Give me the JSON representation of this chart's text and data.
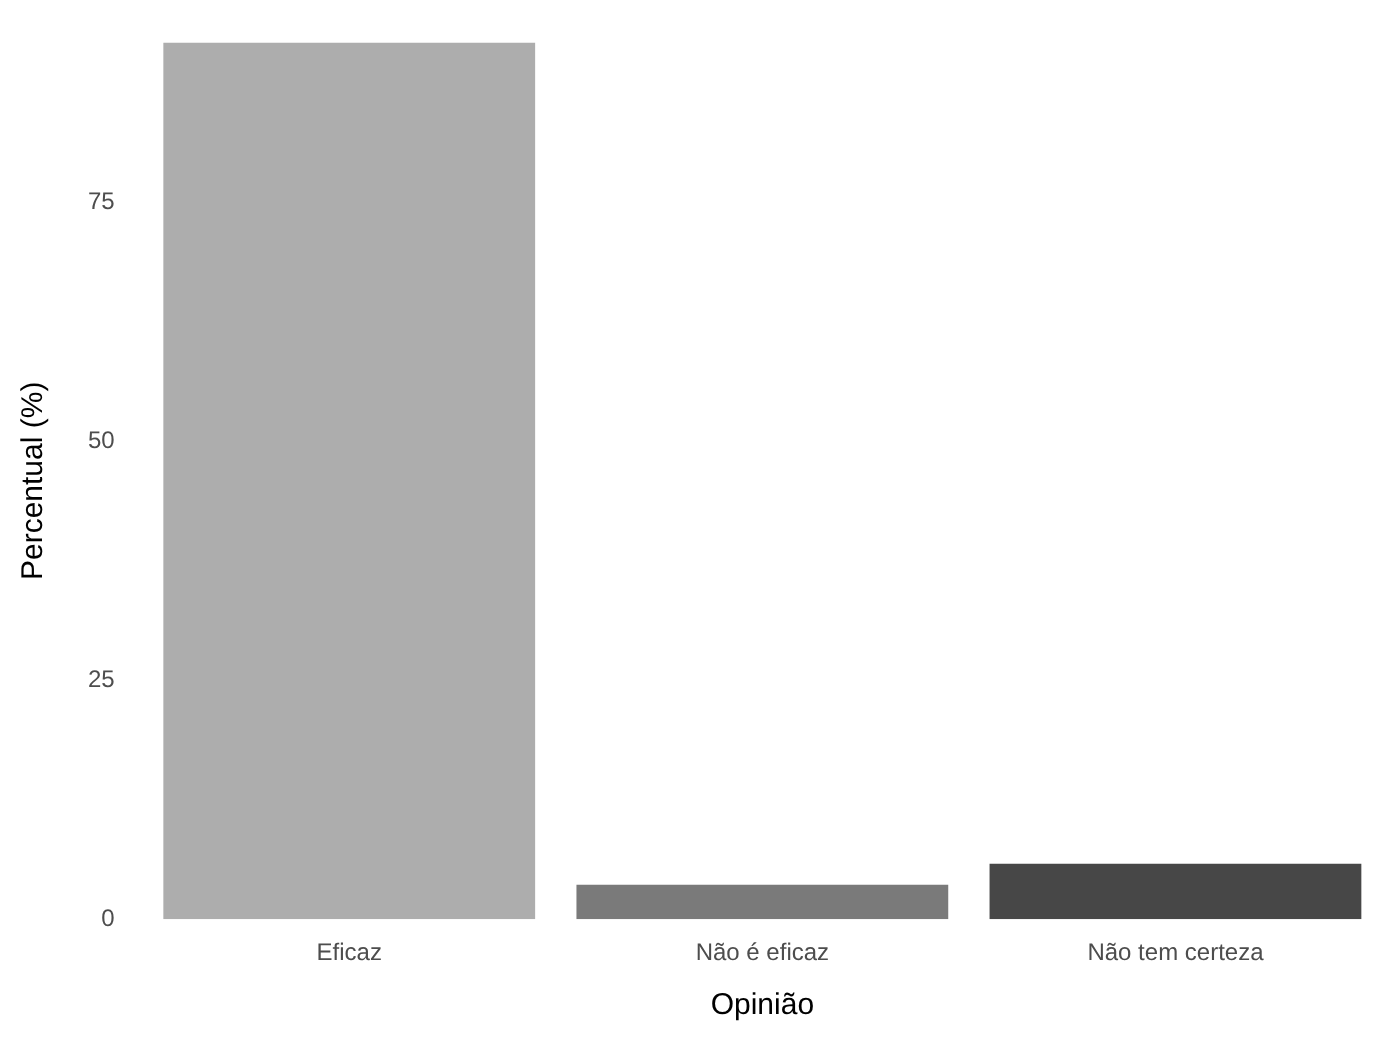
{
  "chart_data": {
    "type": "bar",
    "xlabel": "Opinião",
    "ylabel": "Percentual (%)",
    "categories": [
      "Eficaz",
      "Não é eficaz",
      "Não tem certeza"
    ],
    "values": [
      91.7,
      3.6,
      5.8
    ],
    "colors": [
      "#adadad",
      "#7a7a7a",
      "#474747"
    ],
    "ylim": [
      0,
      91.7
    ],
    "yticks": [
      0,
      25,
      50,
      75
    ],
    "grid": false,
    "legend": false
  }
}
